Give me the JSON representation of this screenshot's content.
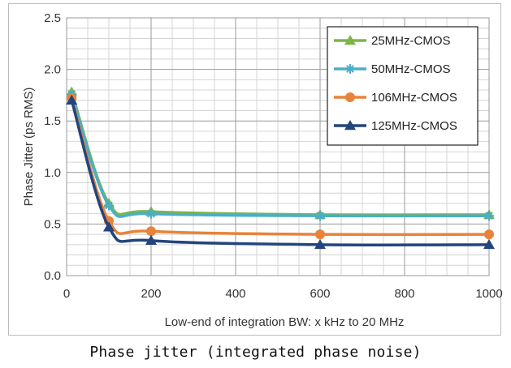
{
  "chart_data": {
    "type": "line",
    "xlabel": "Low-end of integration BW: x kHz to 20 MHz",
    "ylabel": "Phase Jitter (ps RMS)",
    "xlim": [
      0,
      1000
    ],
    "ylim": [
      0,
      2.5
    ],
    "xticks": [
      "0",
      "200",
      "400",
      "600",
      "800",
      "1000"
    ],
    "yticks": [
      "0.0",
      "0.5",
      "1.0",
      "1.5",
      "2.0",
      "2.5"
    ],
    "grid": true,
    "legend_position": "top-right",
    "x": [
      12,
      100,
      200,
      600,
      1000
    ],
    "series": [
      {
        "name": "25MHz-CMOS",
        "color": "#7ab648",
        "marker": "triangle",
        "values": [
          1.78,
          0.7,
          0.62,
          0.59,
          0.59
        ]
      },
      {
        "name": "50MHz-CMOS",
        "color": "#4aaec6",
        "marker": "star",
        "values": [
          1.76,
          0.68,
          0.6,
          0.58,
          0.58
        ]
      },
      {
        "name": "106MHz-CMOS",
        "color": "#e8833a",
        "marker": "circle",
        "values": [
          1.72,
          0.53,
          0.43,
          0.4,
          0.4
        ]
      },
      {
        "name": "125MHz-CMOS",
        "color": "#23457e",
        "marker": "triangle",
        "values": [
          1.7,
          0.47,
          0.34,
          0.3,
          0.3
        ]
      }
    ]
  },
  "caption": "Phase jitter (integrated phase noise)"
}
